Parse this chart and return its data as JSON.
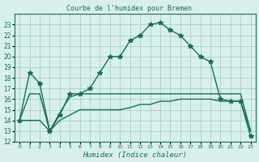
{
  "title": "Courbe de l'humidex pour Bremen",
  "xlabel": "Humidex (Indice chaleur)",
  "x": [
    0,
    1,
    2,
    3,
    4,
    5,
    6,
    7,
    8,
    9,
    10,
    11,
    12,
    13,
    14,
    15,
    16,
    17,
    18,
    19,
    20,
    21,
    22,
    23
  ],
  "line1": [
    14,
    18.5,
    17.5,
    13,
    14.5,
    16.5,
    16.5,
    17,
    18.5,
    20,
    20,
    21.5,
    22,
    23,
    23.2,
    22.5,
    22,
    21,
    20,
    19.5,
    16,
    15.8,
    15.8,
    12.5
  ],
  "line2": [
    14,
    16.5,
    16.5,
    13,
    14.7,
    16.2,
    16.5,
    16.5,
    16.5,
    16.5,
    16.5,
    16.5,
    16.5,
    16.5,
    16.5,
    16.5,
    16.5,
    16.5,
    16.5,
    16.5,
    16.5,
    16.5,
    16.5,
    13
  ],
  "line3": [
    14,
    14,
    14,
    13,
    14,
    14.5,
    15,
    15,
    15,
    15,
    15,
    15.2,
    15.5,
    15.5,
    15.8,
    15.8,
    16,
    16,
    16,
    16,
    15.8,
    15.8,
    15.8,
    13
  ],
  "ylim": [
    12,
    24
  ],
  "xlim": [
    -0.5,
    23.5
  ],
  "yticks": [
    12,
    13,
    14,
    15,
    16,
    17,
    18,
    19,
    20,
    21,
    22,
    23
  ],
  "xticks": [
    0,
    1,
    2,
    3,
    4,
    5,
    6,
    7,
    8,
    9,
    10,
    11,
    12,
    13,
    14,
    15,
    16,
    17,
    18,
    19,
    20,
    21,
    22,
    23
  ],
  "line_color": "#1a6b5a",
  "bg_color": "#d8f0ec",
  "grid_color": "#a0c8c0",
  "marker": "*",
  "marker_size": 4,
  "linewidth": 1.0
}
